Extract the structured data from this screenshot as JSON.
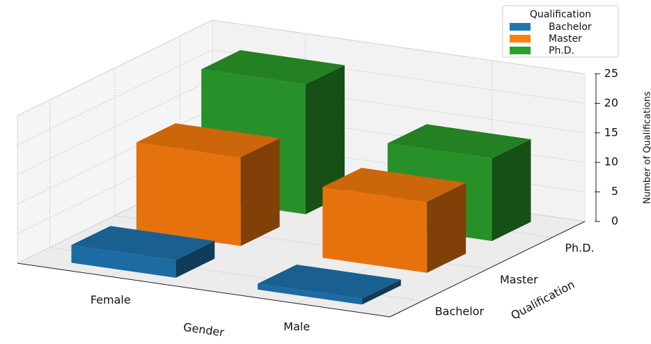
{
  "chart_data": {
    "type": "bar3d",
    "categories": [
      "Female",
      "Male"
    ],
    "y_categories": [
      "Bachelor",
      "Master",
      "Ph.D."
    ],
    "series": [
      {
        "name": "Bachelor",
        "color": "#1f77b4",
        "values": [
          3,
          1
        ]
      },
      {
        "name": "Master",
        "color": "#ff7f0e",
        "values": [
          15,
          12
        ]
      },
      {
        "name": "Ph.D.",
        "color": "#2ca02c",
        "values": [
          22,
          14
        ]
      }
    ],
    "xlabel": "Gender",
    "ylabel": "Qualification",
    "zlabel": "Number of Qualifications",
    "zlim": [
      0,
      25
    ],
    "zticks": [
      0,
      5,
      10,
      15,
      20,
      25
    ],
    "grid": true,
    "legend_title": "Qualification",
    "legend": "upper right"
  }
}
